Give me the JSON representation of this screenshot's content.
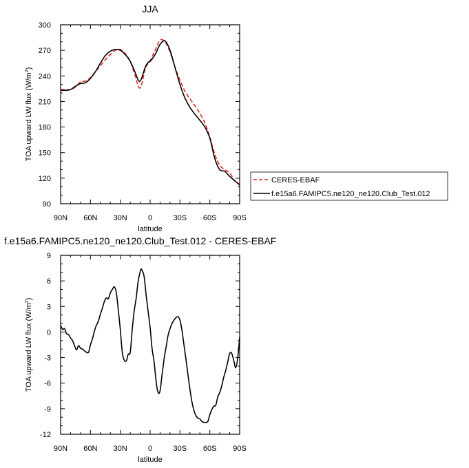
{
  "chart_data": [
    {
      "type": "line",
      "title": "JJA",
      "xlabel": "latitude",
      "ylabel": "TOA upward LW flux (W/m",
      "ylabel_sup": "2",
      "ylabel_close": ")",
      "xlim": [
        90,
        -90
      ],
      "ylim": [
        90,
        300
      ],
      "xticks": [
        90,
        60,
        30,
        0,
        -30,
        -60,
        -90
      ],
      "xtick_labels": [
        "90N",
        "60N",
        "30N",
        "0",
        "30S",
        "60S",
        "90S"
      ],
      "yticks": [
        90,
        120,
        150,
        180,
        210,
        240,
        270,
        300
      ],
      "ytick_labels": [
        "90",
        "120",
        "150",
        "180",
        "210",
        "240",
        "270",
        "300"
      ],
      "legend_position": "right",
      "series": [
        {
          "name": "CERES-EBAF",
          "color": "#e8231f",
          "dash": "dashed",
          "x": [
            90,
            85,
            80,
            75,
            70,
            65,
            60,
            55,
            50,
            45,
            40,
            35,
            30,
            25,
            20,
            15,
            12,
            10,
            8,
            5,
            2,
            0,
            -5,
            -10,
            -15,
            -20,
            -25,
            -30,
            -35,
            -40,
            -45,
            -50,
            -55,
            -60,
            -65,
            -70,
            -75,
            -80,
            -85,
            -90
          ],
          "y": [
            224,
            224,
            224,
            227,
            233,
            234,
            238,
            245,
            252,
            259,
            265,
            270,
            271,
            266,
            257,
            240,
            228,
            226,
            232,
            248,
            255,
            258,
            270,
            282,
            280,
            268,
            250,
            235,
            222,
            213,
            205,
            196,
            185,
            168,
            148,
            135,
            130,
            126,
            117,
            113
          ]
        },
        {
          "name": "f.e15a6.FAMIPC5.ne120_ne120.Club_Test.012",
          "color": "#000000",
          "dash": "solid",
          "x": [
            90,
            85,
            80,
            75,
            70,
            65,
            60,
            55,
            50,
            45,
            40,
            35,
            30,
            25,
            20,
            15,
            12,
            10,
            8,
            5,
            2,
            0,
            -5,
            -10,
            -15,
            -20,
            -25,
            -30,
            -35,
            -40,
            -45,
            -50,
            -55,
            -60,
            -65,
            -70,
            -75,
            -80,
            -85,
            -90
          ],
          "y": [
            223,
            223,
            224,
            228,
            231,
            232,
            237,
            245,
            255,
            264,
            269,
            271,
            270,
            265,
            257,
            244,
            235,
            234,
            239,
            250,
            256,
            257,
            265,
            277,
            281,
            270,
            250,
            230,
            214,
            203,
            195,
            188,
            180,
            167,
            143,
            130,
            128,
            122,
            117,
            112
          ]
        }
      ]
    },
    {
      "type": "line",
      "title": "f.e15a6.FAMIPC5.ne120_ne120.Club_Test.012 - CERES-EBAF",
      "xlabel": "latitude",
      "ylabel": "TOA upward LW flux (W/m",
      "ylabel_sup": "2",
      "ylabel_close": ")",
      "xlim": [
        90,
        -90
      ],
      "ylim": [
        -12,
        9
      ],
      "xticks": [
        90,
        60,
        30,
        0,
        -30,
        -60,
        -90
      ],
      "xtick_labels": [
        "90N",
        "60N",
        "30N",
        "0",
        "30S",
        "60S",
        "90S"
      ],
      "yticks": [
        -12,
        -9,
        -6,
        -3,
        0,
        3,
        6,
        9
      ],
      "ytick_labels": [
        "-12",
        "-9",
        "-6",
        "-3",
        "0",
        "3",
        "6",
        "9"
      ],
      "series": [
        {
          "color": "#000000",
          "dash": "solid",
          "x": [
            90,
            88,
            86,
            84,
            82,
            80,
            78,
            76,
            74,
            72,
            70,
            68,
            65,
            62,
            60,
            58,
            55,
            52,
            50,
            48,
            46,
            44,
            42,
            40,
            38,
            36,
            34,
            32,
            30,
            28,
            26,
            24,
            22,
            20,
            18,
            16,
            14,
            12,
            10,
            9,
            8,
            6,
            4,
            2,
            0,
            -2,
            -4,
            -6,
            -8,
            -10,
            -12,
            -14,
            -16,
            -18,
            -20,
            -22,
            -24,
            -26,
            -28,
            -30,
            -32,
            -34,
            -36,
            -38,
            -40,
            -42,
            -44,
            -46,
            -48,
            -50,
            -52,
            -54,
            -56,
            -58,
            -60,
            -62,
            -64,
            -66,
            -68,
            -70,
            -72,
            -74,
            -76,
            -78,
            -80,
            -82,
            -84,
            -86,
            -88,
            -90
          ],
          "y": [
            0.8,
            0.3,
            0.4,
            -0.2,
            -0.3,
            -0.7,
            -1.0,
            -1.6,
            -2.1,
            -1.6,
            -1.9,
            -2.0,
            -2.3,
            -2.4,
            -1.5,
            -0.8,
            0.5,
            1.3,
            2.1,
            2.8,
            3.6,
            4.0,
            3.9,
            4.6,
            5.0,
            5.3,
            4.6,
            2.6,
            0.3,
            -2.4,
            -3.3,
            -3.4,
            -2.6,
            -2.4,
            0.3,
            2.5,
            4.0,
            6.0,
            7.1,
            7.4,
            7.2,
            6.5,
            4.3,
            2.4,
            0.5,
            -2.0,
            -3.5,
            -5.8,
            -7.1,
            -6.9,
            -5.0,
            -3.2,
            -1.8,
            -0.4,
            0.4,
            1.0,
            1.4,
            1.7,
            1.8,
            1.4,
            0.2,
            -1.5,
            -3.2,
            -5.0,
            -6.7,
            -8.2,
            -9.2,
            -9.8,
            -10.1,
            -10.2,
            -10.5,
            -10.6,
            -10.6,
            -10.5,
            -9.7,
            -9.1,
            -8.7,
            -8.6,
            -7.6,
            -7.1,
            -6.3,
            -5.3,
            -4.5,
            -3.5,
            -2.5,
            -2.5,
            -3.3,
            -4.2,
            -3.1,
            -0.6
          ]
        }
      ]
    }
  ]
}
